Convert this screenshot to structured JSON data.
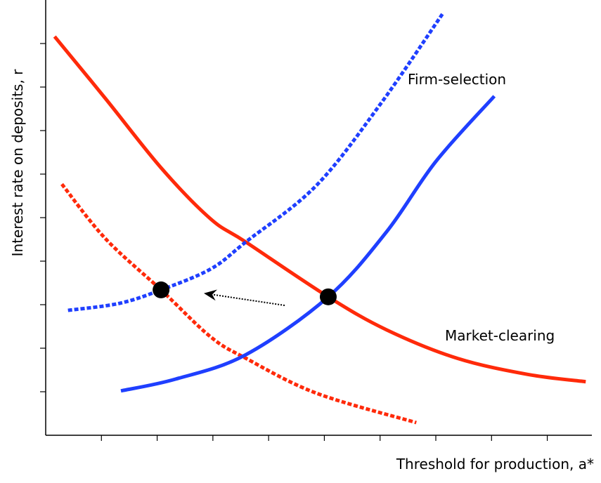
{
  "chart_data": {
    "type": "line",
    "x_label": "Threshold for production, a*",
    "y_label": "Interest rate on deposits, r",
    "xlim": [
      0,
      9.8
    ],
    "ylim": [
      0,
      10
    ],
    "xticks": [
      1,
      2,
      3,
      4,
      5,
      6,
      7,
      8,
      9
    ],
    "yticks": [
      1,
      2,
      3,
      4,
      5,
      6,
      7,
      8,
      9
    ],
    "series": [
      {
        "color": "#ff2a0a",
        "dashed": false,
        "x": [
          0.16,
          1.07,
          2.08,
          2.96,
          3.59,
          5.07,
          6.12,
          7.38,
          8.64,
          9.69
        ],
        "values": [
          9.16,
          7.74,
          6.13,
          4.97,
          4.44,
          3.18,
          2.42,
          1.77,
          1.4,
          1.23
        ]
      },
      {
        "color": "#ff2a0a",
        "dashed": true,
        "x": [
          0.29,
          1.07,
          2.07,
          2.96,
          3.59,
          4.85,
          6.65
        ],
        "values": [
          5.77,
          4.52,
          3.34,
          2.26,
          1.77,
          0.97,
          0.29
        ]
      },
      {
        "color": "#1f3fff",
        "dashed": false,
        "x": [
          1.35,
          2.33,
          3.59,
          5.07,
          6.12,
          7.0,
          8.05
        ],
        "values": [
          1.02,
          1.29,
          1.85,
          3.18,
          4.68,
          6.29,
          7.79
        ]
      },
      {
        "color": "#1f3fff",
        "dashed": true,
        "x": [
          0.4,
          1.32,
          2.07,
          2.96,
          3.59,
          4.85,
          5.99,
          7.12
        ],
        "values": [
          2.87,
          3.03,
          3.34,
          3.82,
          4.44,
          5.73,
          7.58,
          9.68
        ]
      }
    ],
    "points": {
      "color": "#000000",
      "x": [
        2.07,
        5.07
      ],
      "values": [
        3.34,
        3.18
      ]
    },
    "annotations": [
      "Firm-selection",
      "Market-clearing"
    ]
  }
}
